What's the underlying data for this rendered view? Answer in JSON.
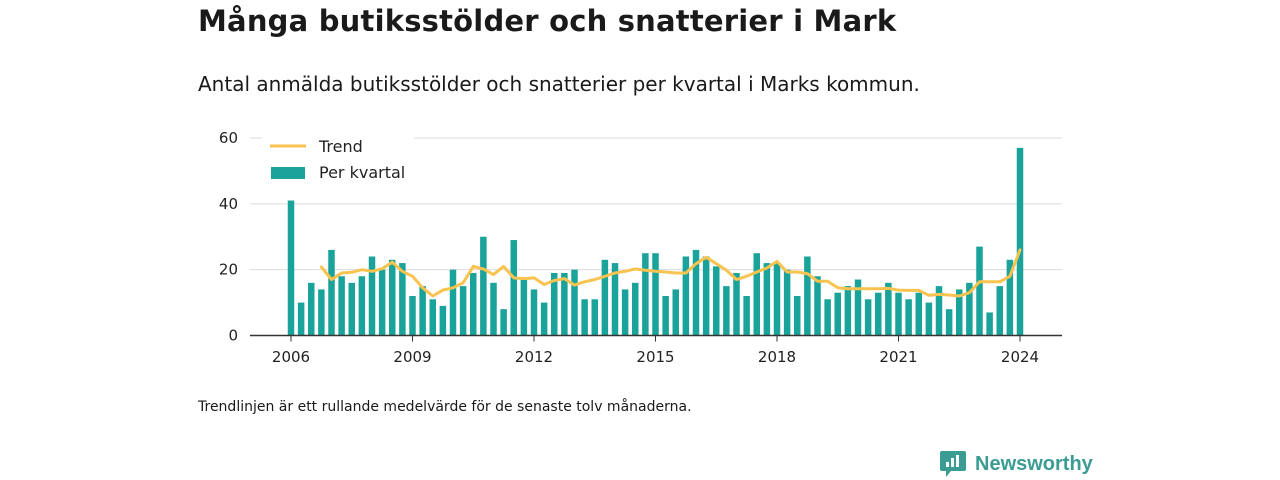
{
  "title": "Många butiksstölder och snatterier i Mark",
  "subtitle": "Antal anmälda butiksstölder och snatterier per kvartal i Marks kommun.",
  "footnote": "Trendlinjen är ett rullande medelvärde för de senaste tolv månaderna.",
  "brand": {
    "name": "Newsworthy"
  },
  "colors": {
    "bars": "#1aa39a",
    "trend": "#f9c34f",
    "grid": "#dcdcdc",
    "axis": "#333333"
  },
  "chart_data": {
    "type": "bar",
    "grid": true,
    "legend_position": "top-left",
    "ylim": [
      0,
      60
    ],
    "yticks": [
      0,
      20,
      40,
      60
    ],
    "xticks": [
      2006,
      2009,
      2012,
      2015,
      2018,
      2021,
      2024
    ],
    "x_start": 2006,
    "x_step": 0.25,
    "series": [
      {
        "name": "Per kvartal",
        "kind": "bar",
        "values": [
          41,
          10,
          16,
          14,
          26,
          18,
          16,
          18,
          24,
          20,
          23,
          22,
          12,
          15,
          11,
          9,
          20,
          15,
          19,
          30,
          16,
          8,
          29,
          17,
          14,
          10,
          19,
          19,
          20,
          11,
          11,
          23,
          22,
          14,
          16,
          25,
          25,
          12,
          14,
          24,
          26,
          24,
          21,
          15,
          19,
          12,
          25,
          22,
          22,
          20,
          12,
          24,
          18,
          11,
          13,
          15,
          17,
          11,
          13,
          16,
          13,
          11,
          13,
          10,
          15,
          8,
          14,
          16,
          27,
          7,
          15,
          23,
          57
        ]
      },
      {
        "name": "Trend",
        "kind": "line",
        "values": [
          null,
          null,
          null,
          20.8,
          17.0,
          19.0,
          19.2,
          20.0,
          19.5,
          20.3,
          22.3,
          19.5,
          18.0,
          14.5,
          12.0,
          13.8,
          14.5,
          16.0,
          21.0,
          20.2,
          18.5,
          21.0,
          17.5,
          17.3,
          17.5,
          15.5,
          16.7,
          17.3,
          15.3,
          16.3,
          17.0,
          18.0,
          19.0,
          19.5,
          20.2,
          19.8,
          19.5,
          19.3,
          19.0,
          19.0,
          21.8,
          23.8,
          21.8,
          19.8,
          17.0,
          18.0,
          19.3,
          20.5,
          22.5,
          19.3,
          19.3,
          18.8,
          16.5,
          16.5,
          14.5,
          14.2,
          14.2,
          14.2,
          14.2,
          14.3,
          13.8,
          13.7,
          13.7,
          12.2,
          12.5,
          12.3,
          12.0,
          13.0,
          16.3,
          16.3,
          16.3,
          18.0,
          26.0
        ]
      }
    ]
  }
}
